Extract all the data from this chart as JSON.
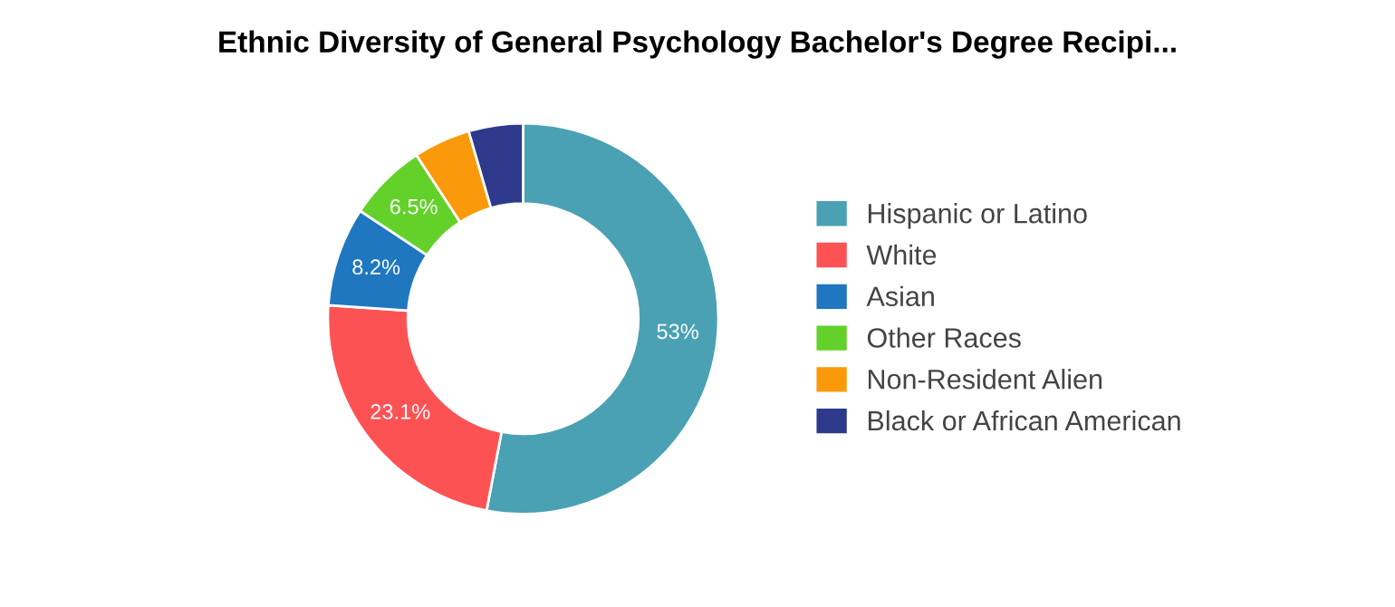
{
  "chart_data": {
    "type": "donut",
    "title": "Ethnic Diversity of General Psychology Bachelor's Degree Recipi...",
    "categories": [
      "Hispanic or Latino",
      "White",
      "Asian",
      "Other Races",
      "Non-Resident Alien",
      "Black or African American"
    ],
    "values": [
      53,
      23.1,
      8.2,
      6.5,
      4.7,
      4.5
    ],
    "value_labels": [
      "53%",
      "23.1%",
      "8.2%",
      "6.5%",
      null,
      null
    ],
    "colors": [
      "#4aa1b3",
      "#fd5254",
      "#1f77c0",
      "#63d12a",
      "#fa9a0a",
      "#2d3a8c"
    ],
    "legend": "right"
  }
}
